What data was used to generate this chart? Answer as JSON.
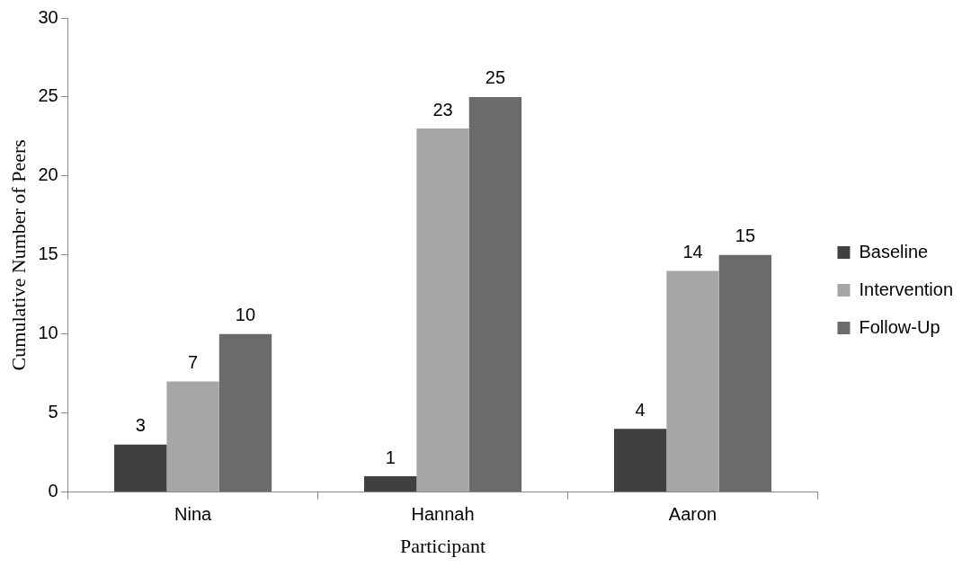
{
  "chart_data": {
    "type": "bar",
    "xlabel": "Participant",
    "ylabel": "Cumulative Number of Peers",
    "categories": [
      "Nina",
      "Hannah",
      "Aaron"
    ],
    "series": [
      {
        "name": "Baseline",
        "color": "#404040",
        "values": [
          3,
          1,
          4
        ]
      },
      {
        "name": "Intervention",
        "color": "#a6a6a6",
        "values": [
          7,
          23,
          14
        ]
      },
      {
        "name": "Follow-Up",
        "color": "#6b6b6b",
        "values": [
          10,
          25,
          15
        ]
      }
    ],
    "ylim": [
      0,
      30
    ],
    "yticks": [
      0,
      5,
      10,
      15,
      20,
      25,
      30
    ],
    "grid": false,
    "legend": "right",
    "data_labels": true
  }
}
